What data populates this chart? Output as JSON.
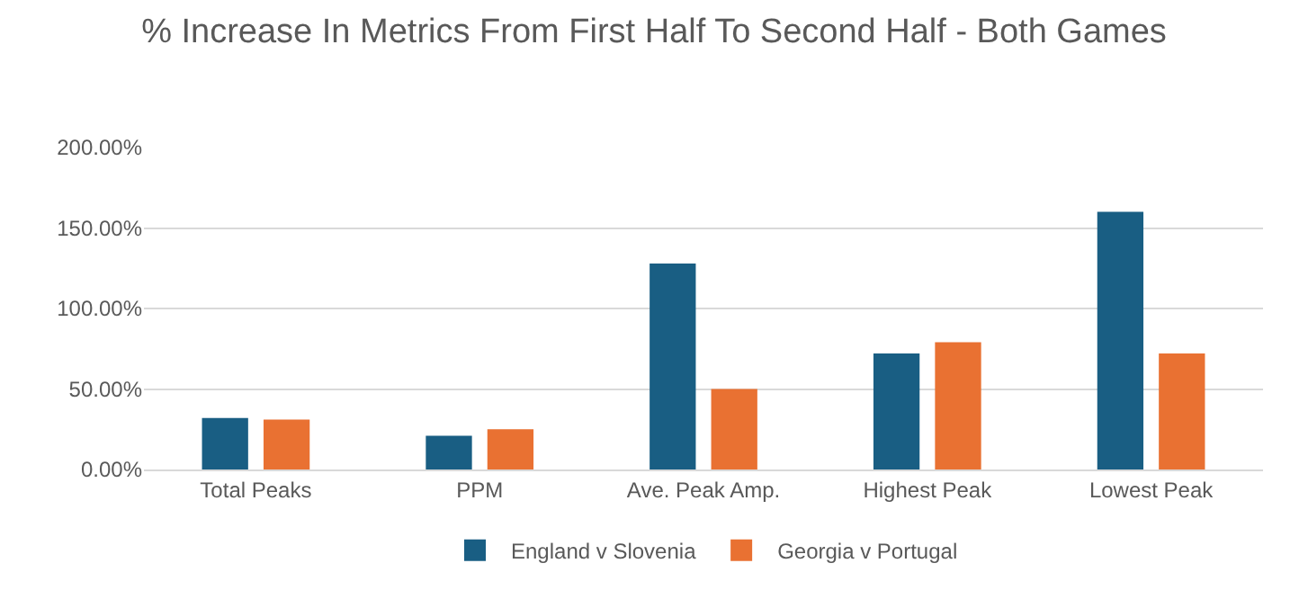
{
  "chart_data": {
    "type": "bar",
    "title": "% Increase In Metrics From First Half To Second Half - Both Games",
    "categories": [
      "Total Peaks",
      "PPM",
      "Ave. Peak Amp.",
      "Highest Peak",
      "Lowest Peak"
    ],
    "series": [
      {
        "name": "England v Slovenia",
        "color": "#195e83",
        "values": [
          32,
          21,
          128,
          72,
          160
        ]
      },
      {
        "name": "Georgia v Portugal",
        "color": "#e97132",
        "values": [
          31,
          25,
          50,
          79,
          72
        ]
      }
    ],
    "ylim": [
      0,
      200
    ],
    "yticks": [
      {
        "value": 0,
        "label": "0.00%"
      },
      {
        "value": 50,
        "label": "50.00%"
      },
      {
        "value": 100,
        "label": "100.00%"
      },
      {
        "value": 150,
        "label": "150.00%"
      },
      {
        "value": 200,
        "label": "200.00%"
      }
    ],
    "grid": "y",
    "legend": "bottom"
  }
}
